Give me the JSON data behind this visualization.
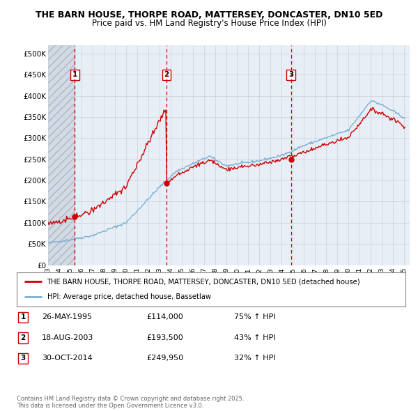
{
  "title1": "THE BARN HOUSE, THORPE ROAD, MATTERSEY, DONCASTER, DN10 5ED",
  "title2": "Price paid vs. HM Land Registry's House Price Index (HPI)",
  "ylim": [
    0,
    520000
  ],
  "yticks": [
    0,
    50000,
    100000,
    150000,
    200000,
    250000,
    300000,
    350000,
    400000,
    450000,
    500000
  ],
  "ytick_labels": [
    "£0",
    "£50K",
    "£100K",
    "£150K",
    "£200K",
    "£250K",
    "£300K",
    "£350K",
    "£400K",
    "£450K",
    "£500K"
  ],
  "xlim_start": 1993.0,
  "xlim_end": 2025.5,
  "xticks": [
    1993,
    1994,
    1995,
    1996,
    1997,
    1998,
    1999,
    2000,
    2001,
    2002,
    2003,
    2004,
    2005,
    2006,
    2007,
    2008,
    2009,
    2010,
    2011,
    2012,
    2013,
    2014,
    2015,
    2016,
    2017,
    2018,
    2019,
    2020,
    2021,
    2022,
    2023,
    2024,
    2025
  ],
  "sale_dates": [
    1995.4,
    2003.63,
    2014.83
  ],
  "sale_prices": [
    114000,
    193500,
    249950
  ],
  "sale_labels": [
    "1",
    "2",
    "3"
  ],
  "legend_line1": "THE BARN HOUSE, THORPE ROAD, MATTERSEY, DONCASTER, DN10 5ED (detached house)",
  "legend_line2": "HPI: Average price, detached house, Bassetlaw",
  "table_rows": [
    [
      "1",
      "26-MAY-1995",
      "£114,000",
      "75% ↑ HPI"
    ],
    [
      "2",
      "18-AUG-2003",
      "£193,500",
      "43% ↑ HPI"
    ],
    [
      "3",
      "30-OCT-2014",
      "£249,950",
      "32% ↑ HPI"
    ]
  ],
  "footnote": "Contains HM Land Registry data © Crown copyright and database right 2025.\nThis data is licensed under the Open Government Licence v3.0.",
  "house_color": "#cc0000",
  "hpi_color": "#7aafd4",
  "grid_color": "#c8d0dc",
  "chart_bg": "#e8eef5"
}
